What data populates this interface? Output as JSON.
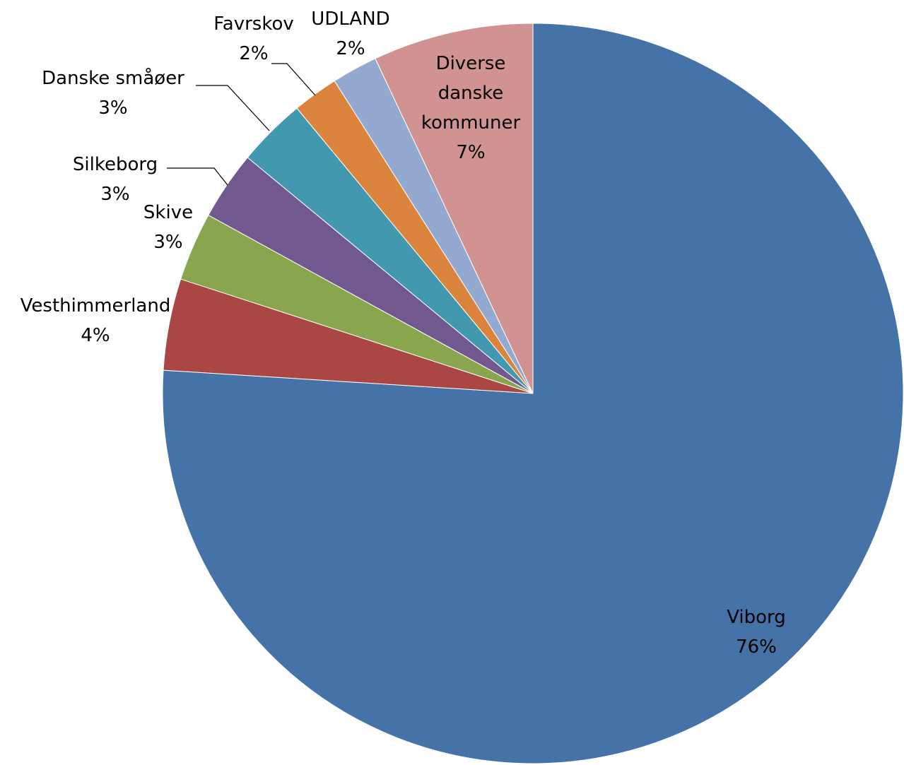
{
  "chart_data": {
    "type": "pie",
    "title": "",
    "start_angle_deg": 0,
    "direction": "clockwise",
    "unit": "%",
    "slices": [
      {
        "name": "Viborg",
        "value": 76,
        "label_lines": [
          "Viborg",
          "76%"
        ],
        "color": "#4572A7"
      },
      {
        "name": "Vesthimmerland",
        "value": 4,
        "label_lines": [
          "Vesthimmerland",
          "4%"
        ],
        "color": "#AA4643"
      },
      {
        "name": "Skive",
        "value": 3,
        "label_lines": [
          "Skive",
          "3%"
        ],
        "color": "#89A54E"
      },
      {
        "name": "Silkeborg",
        "value": 3,
        "label_lines": [
          "Silkeborg",
          "3%"
        ],
        "color": "#71588F"
      },
      {
        "name": "Danske småøer",
        "value": 3,
        "label_lines": [
          "Danske småøer",
          "3%"
        ],
        "color": "#4198AF"
      },
      {
        "name": "Favrskov",
        "value": 2,
        "label_lines": [
          "Favrskov",
          "2%"
        ],
        "color": "#DB843D"
      },
      {
        "name": "UDLAND",
        "value": 2,
        "label_lines": [
          "UDLAND",
          "2%"
        ],
        "color": "#93A9CF"
      },
      {
        "name": "Diverse danske kommuner",
        "value": 7,
        "label_lines": [
          "Diverse",
          "danske",
          "kommuner",
          "7%"
        ],
        "color": "#D19392"
      }
    ],
    "legend": "none",
    "data_labels": "name-and-percent"
  }
}
